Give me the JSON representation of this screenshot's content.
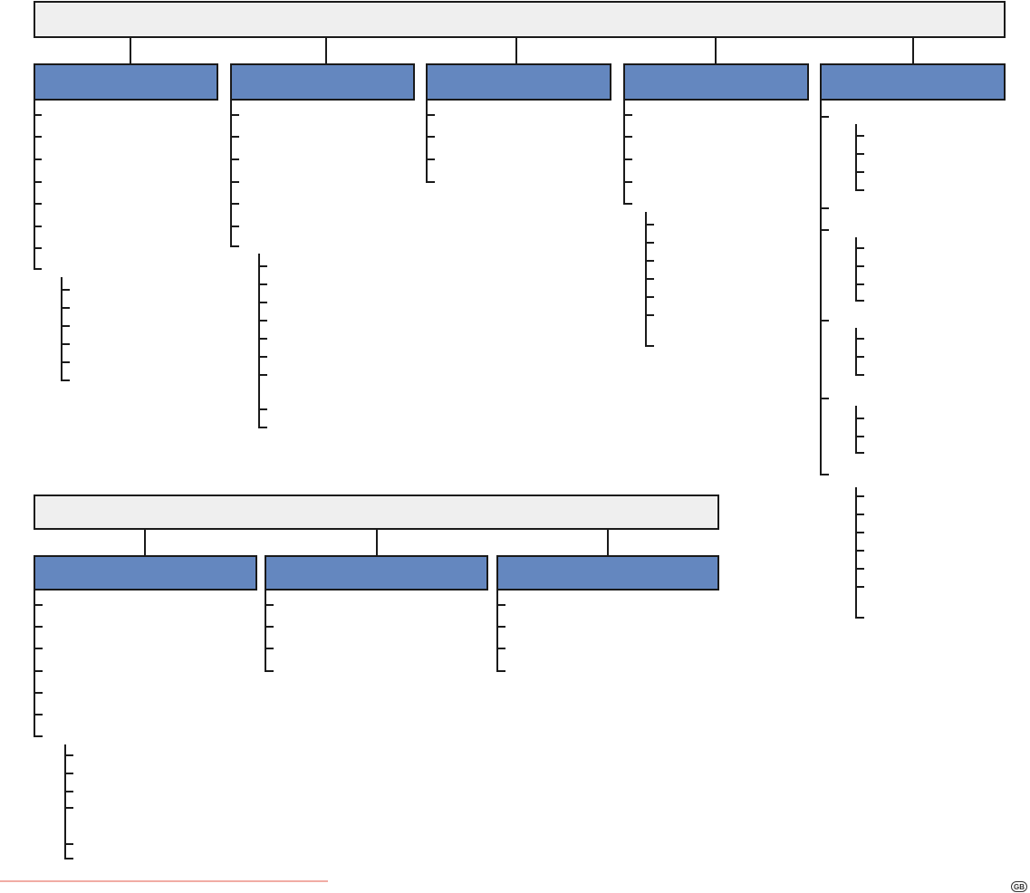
{
  "badge": {
    "label": "GB"
  },
  "colors": {
    "root_fill": "#efefef",
    "category_fill": "#6487bf",
    "line": "#1a1a1a",
    "divider": "#e35a4a"
  }
}
